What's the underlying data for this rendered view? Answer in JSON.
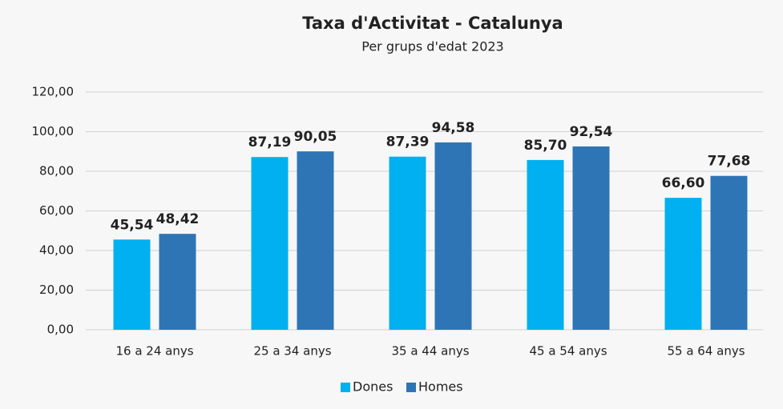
{
  "chart_data": {
    "type": "bar",
    "title": "Taxa d'Activitat - Catalunya",
    "subtitle": "Per grups d'edat 2023",
    "categories": [
      "16 a 24 anys",
      "25 a 34 anys",
      "35 a 44 anys",
      "45 a 54 anys",
      "55 a 64 anys"
    ],
    "series": [
      {
        "name": "Dones",
        "color": "#00b0f0",
        "values": [
          45.54,
          87.19,
          87.39,
          85.7,
          66.6
        ],
        "value_labels": [
          "45,54",
          "87,19",
          "87,39",
          "85,70",
          "66,60"
        ]
      },
      {
        "name": "Homes",
        "color": "#2e75b6",
        "values": [
          48.42,
          90.05,
          94.58,
          92.54,
          77.68
        ],
        "value_labels": [
          "48,42",
          "90,05",
          "94,58",
          "92,54",
          "77,68"
        ]
      }
    ],
    "ylim": [
      0,
      120
    ],
    "yticks": [
      {
        "value": 0,
        "label": "0,00"
      },
      {
        "value": 20,
        "label": "20,00"
      },
      {
        "value": 40,
        "label": "40,00"
      },
      {
        "value": 60,
        "label": "60,00"
      },
      {
        "value": 80,
        "label": "80,00"
      },
      {
        "value": 100,
        "label": "100,00"
      },
      {
        "value": 120,
        "label": "120,00"
      }
    ],
    "grid": true,
    "legend": "bottom"
  }
}
